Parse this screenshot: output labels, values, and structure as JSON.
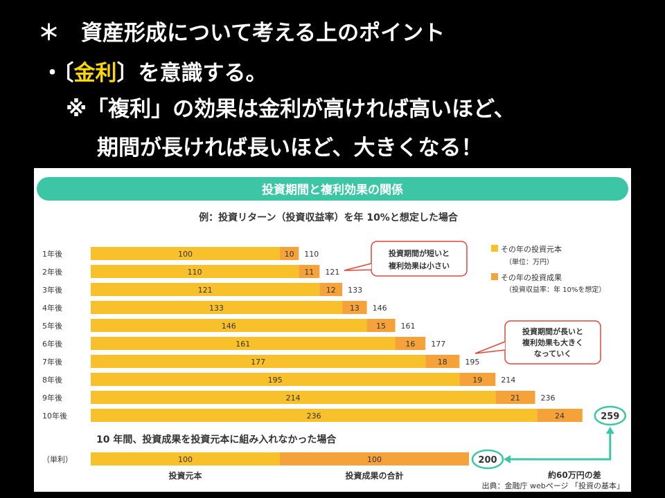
{
  "slide": {
    "line1": "＊　資産形成について考える上のポイント",
    "line2_prefix": "・〔",
    "line2_keyword": "金利",
    "line2_suffix": "〕を意識する。",
    "line3": "※「複利」の効果は金利が高ければ高いほど、",
    "line4": "期間が長ければ長いほど、大きくなる！"
  },
  "chart_data": {
    "type": "bar",
    "title": "投資期間と複利効果の関係",
    "subtitle": "例：投資リターン（投資収益率）を年 10%と想定した場合",
    "categories": [
      "1年後",
      "2年後",
      "3年後",
      "4年後",
      "5年後",
      "6年後",
      "7年後",
      "8年後",
      "9年後",
      "10年後"
    ],
    "series": [
      {
        "name": "その年の投資元本",
        "color": "#f8c02a",
        "values": [
          100,
          110,
          121,
          133,
          146,
          161,
          177,
          195,
          214,
          236
        ]
      },
      {
        "name": "その年の投資成果",
        "color": "#f6a23a",
        "values": [
          10,
          11,
          12,
          13,
          15,
          16,
          18,
          19,
          21,
          24
        ]
      }
    ],
    "totals": [
      110,
      121,
      133,
      146,
      161,
      177,
      195,
      214,
      236,
      259
    ],
    "legend": {
      "principal_label": "その年の投資元本",
      "principal_note": "（単位：万円）",
      "return_label": "その年の投資成果",
      "return_note": "（投資収益率：年 10%を想定）"
    },
    "callout_short": [
      "投資期間が短いと",
      "複利効果は小さい"
    ],
    "callout_long": [
      "投資期間が長いと",
      "複利効果も大きく",
      "なっていく"
    ],
    "simple_title": "10 年間、投資成果を投資元本に組み入れなかった場合",
    "simple_row": {
      "label": "（単利）",
      "principal": 100,
      "return": 100,
      "total": 200
    },
    "difference_label": "約60万円の差",
    "bottom_label_principal": "投資元本",
    "bottom_label_return": "投資成果の合計",
    "source": "出典：金融庁 webページ 「投資の基本」"
  }
}
